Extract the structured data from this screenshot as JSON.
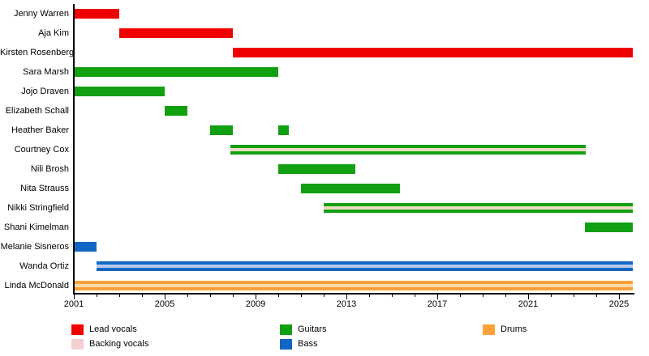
{
  "chart_data": {
    "type": "bar",
    "subtype": "gantt-timeline-band-members",
    "title": "",
    "x_axis": {
      "major_ticks": [
        2001,
        2005,
        2009,
        2013,
        2017,
        2021,
        2025
      ],
      "minor_tick_every_years": 1,
      "min": 2001,
      "max": 2025.68
    },
    "present_year": 2025.61,
    "grid": false,
    "legend_position": "bottom",
    "role_colors": {
      "Lead vocals": "#f00000",
      "Backing vocals": "#f2d0d0",
      "Guitars": "#11a011",
      "Bass": "#1166c4",
      "Drums": "#f9a13a"
    },
    "stripe_display_colors": {
      "Guitars": "#eddcc3",
      "Bass": "#b9c9e8",
      "Drums": "#fbd9ab"
    },
    "members": [
      {
        "name": "Jenny Warren",
        "roles": [
          "Lead vocals"
        ],
        "spans": [
          {
            "start": 2001,
            "end": 2003,
            "role": "Lead vocals"
          }
        ]
      },
      {
        "name": "Aja Kim",
        "roles": [
          "Lead vocals"
        ],
        "spans": [
          {
            "start": 2003,
            "end": 2008,
            "role": "Lead vocals"
          }
        ]
      },
      {
        "name": "Kirsten Rosenberg",
        "roles": [
          "Lead vocals"
        ],
        "spans": [
          {
            "start": 2008,
            "end": "present",
            "role": "Lead vocals"
          }
        ]
      },
      {
        "name": "Sara Marsh",
        "roles": [
          "Guitars"
        ],
        "spans": [
          {
            "start": 2001,
            "end": 2010,
            "role": "Guitars"
          }
        ]
      },
      {
        "name": "Jojo Draven",
        "roles": [
          "Guitars"
        ],
        "spans": [
          {
            "start": 2001,
            "end": 2005,
            "role": "Guitars"
          }
        ]
      },
      {
        "name": "Elizabeth Schall",
        "roles": [
          "Guitars"
        ],
        "spans": [
          {
            "start": 2005,
            "end": 2006,
            "role": "Guitars"
          }
        ]
      },
      {
        "name": "Heather Baker",
        "roles": [
          "Guitars"
        ],
        "spans": [
          {
            "start": 2007,
            "end": 2008,
            "role": "Guitars"
          },
          {
            "start": 2010,
            "end": 2010.45,
            "role": "Guitars"
          }
        ]
      },
      {
        "name": "Courtney Cox",
        "roles": [
          "Guitars",
          "Backing vocals"
        ],
        "spans": [
          {
            "start": 2007.9,
            "end": 2023.55,
            "role": "Guitars",
            "stripe": "Backing vocals"
          }
        ]
      },
      {
        "name": "Nili Brosh",
        "roles": [
          "Guitars"
        ],
        "spans": [
          {
            "start": 2010,
            "end": 2013.4,
            "role": "Guitars"
          }
        ]
      },
      {
        "name": "Nita Strauss",
        "roles": [
          "Guitars"
        ],
        "spans": [
          {
            "start": 2011,
            "end": 2015.35,
            "role": "Guitars"
          }
        ]
      },
      {
        "name": "Nikki Stringfield",
        "roles": [
          "Guitars",
          "Backing vocals"
        ],
        "spans": [
          {
            "start": 2012,
            "end": "present",
            "role": "Guitars",
            "stripe": "Backing vocals"
          }
        ]
      },
      {
        "name": "Shani Kimelman",
        "roles": [
          "Guitars"
        ],
        "spans": [
          {
            "start": 2023.5,
            "end": "present",
            "role": "Guitars"
          }
        ]
      },
      {
        "name": "Melanie Sisneros",
        "roles": [
          "Bass"
        ],
        "spans": [
          {
            "start": 2001,
            "end": 2002,
            "role": "Bass"
          }
        ]
      },
      {
        "name": "Wanda Ortiz",
        "roles": [
          "Bass",
          "Backing vocals"
        ],
        "spans": [
          {
            "start": 2002,
            "end": "present",
            "role": "Bass",
            "stripe": "Backing vocals"
          }
        ]
      },
      {
        "name": "Linda McDonald",
        "roles": [
          "Drums",
          "Backing vocals"
        ],
        "spans": [
          {
            "start": 2001,
            "end": "present",
            "role": "Drums",
            "stripe": "Backing vocals"
          }
        ]
      }
    ],
    "legend": {
      "columns": [
        {
          "items": [
            {
              "label": "Lead vocals",
              "color": "#f00000"
            },
            {
              "label": "Backing vocals",
              "color": "#f2d0d0"
            }
          ]
        },
        {
          "items": [
            {
              "label": "Guitars",
              "color": "#11a011"
            },
            {
              "label": "Bass",
              "color": "#1166c4"
            }
          ]
        },
        {
          "items": [
            {
              "label": "Drums",
              "color": "#f9a13a"
            }
          ]
        }
      ]
    }
  }
}
